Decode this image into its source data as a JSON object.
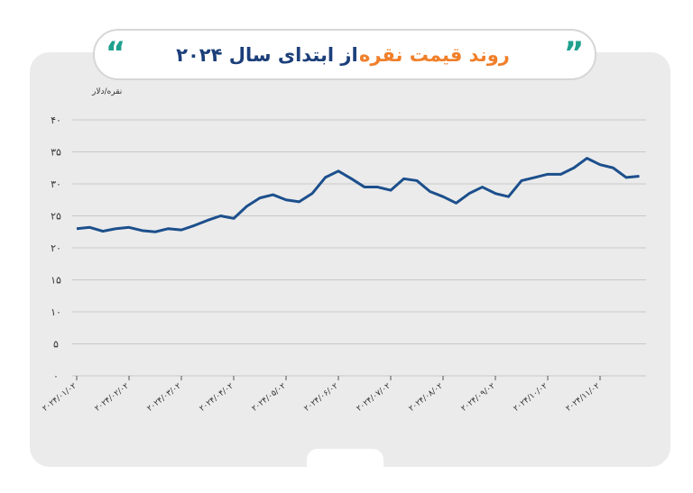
{
  "chart_data": {
    "type": "line",
    "title_part1": "روند قیمت نقره",
    "title_part2": "از ابتدای سال ۲۰۲۴",
    "y_label": "نقره/دلار",
    "categories": [
      "۲۰۲۴/۰۱/۰۲",
      null,
      null,
      null,
      "۲۰۲۴/۰۲/۰۲",
      null,
      null,
      null,
      "۲۰۲۴/۰۳/۰۲",
      null,
      null,
      null,
      "۲۰۲۴/۰۴/۰۲",
      null,
      null,
      null,
      "۲۰۲۴/۰۵/۰۲",
      null,
      null,
      null,
      "۲۰۲۴/۰۶/۰۲",
      null,
      null,
      null,
      "۲۰۲۴/۰۷/۰۲",
      null,
      null,
      null,
      "۲۰۲۴/۰۸/۰۲",
      null,
      null,
      null,
      "۲۰۲۴/۰۹/۰۲",
      null,
      null,
      null,
      "۲۰۲۴/۱۰/۰۲",
      null,
      null,
      null,
      "۲۰۲۴/۱۱/۰۲",
      null,
      null,
      null
    ],
    "series": [
      {
        "name": "نقره",
        "color": "#1c4f8c",
        "values": [
          23.0,
          23.2,
          22.6,
          23.0,
          23.2,
          22.7,
          22.5,
          23.0,
          22.8,
          23.5,
          24.3,
          25.0,
          24.6,
          26.5,
          27.8,
          28.3,
          27.5,
          27.2,
          28.5,
          31.0,
          32.0,
          30.8,
          29.5,
          29.5,
          29.0,
          30.8,
          30.5,
          28.8,
          28.0,
          27.0,
          28.5,
          29.5,
          28.5,
          28.0,
          30.5,
          31.0,
          31.5,
          31.5,
          32.5,
          34.0,
          33.0,
          32.5,
          31.0,
          31.2
        ]
      }
    ],
    "ylim": [
      0,
      40
    ],
    "yticks": [
      {
        "value": 0,
        "label": "۰"
      },
      {
        "value": 5,
        "label": "۵"
      },
      {
        "value": 10,
        "label": "۱۰"
      },
      {
        "value": 15,
        "label": "۱۵"
      },
      {
        "value": 20,
        "label": "۲۰"
      },
      {
        "value": 25,
        "label": "۲۵"
      },
      {
        "value": 30,
        "label": "۳۰"
      },
      {
        "value": 35,
        "label": "۳۵"
      },
      {
        "value": 40,
        "label": "۴۰"
      }
    ],
    "grid": true
  }
}
